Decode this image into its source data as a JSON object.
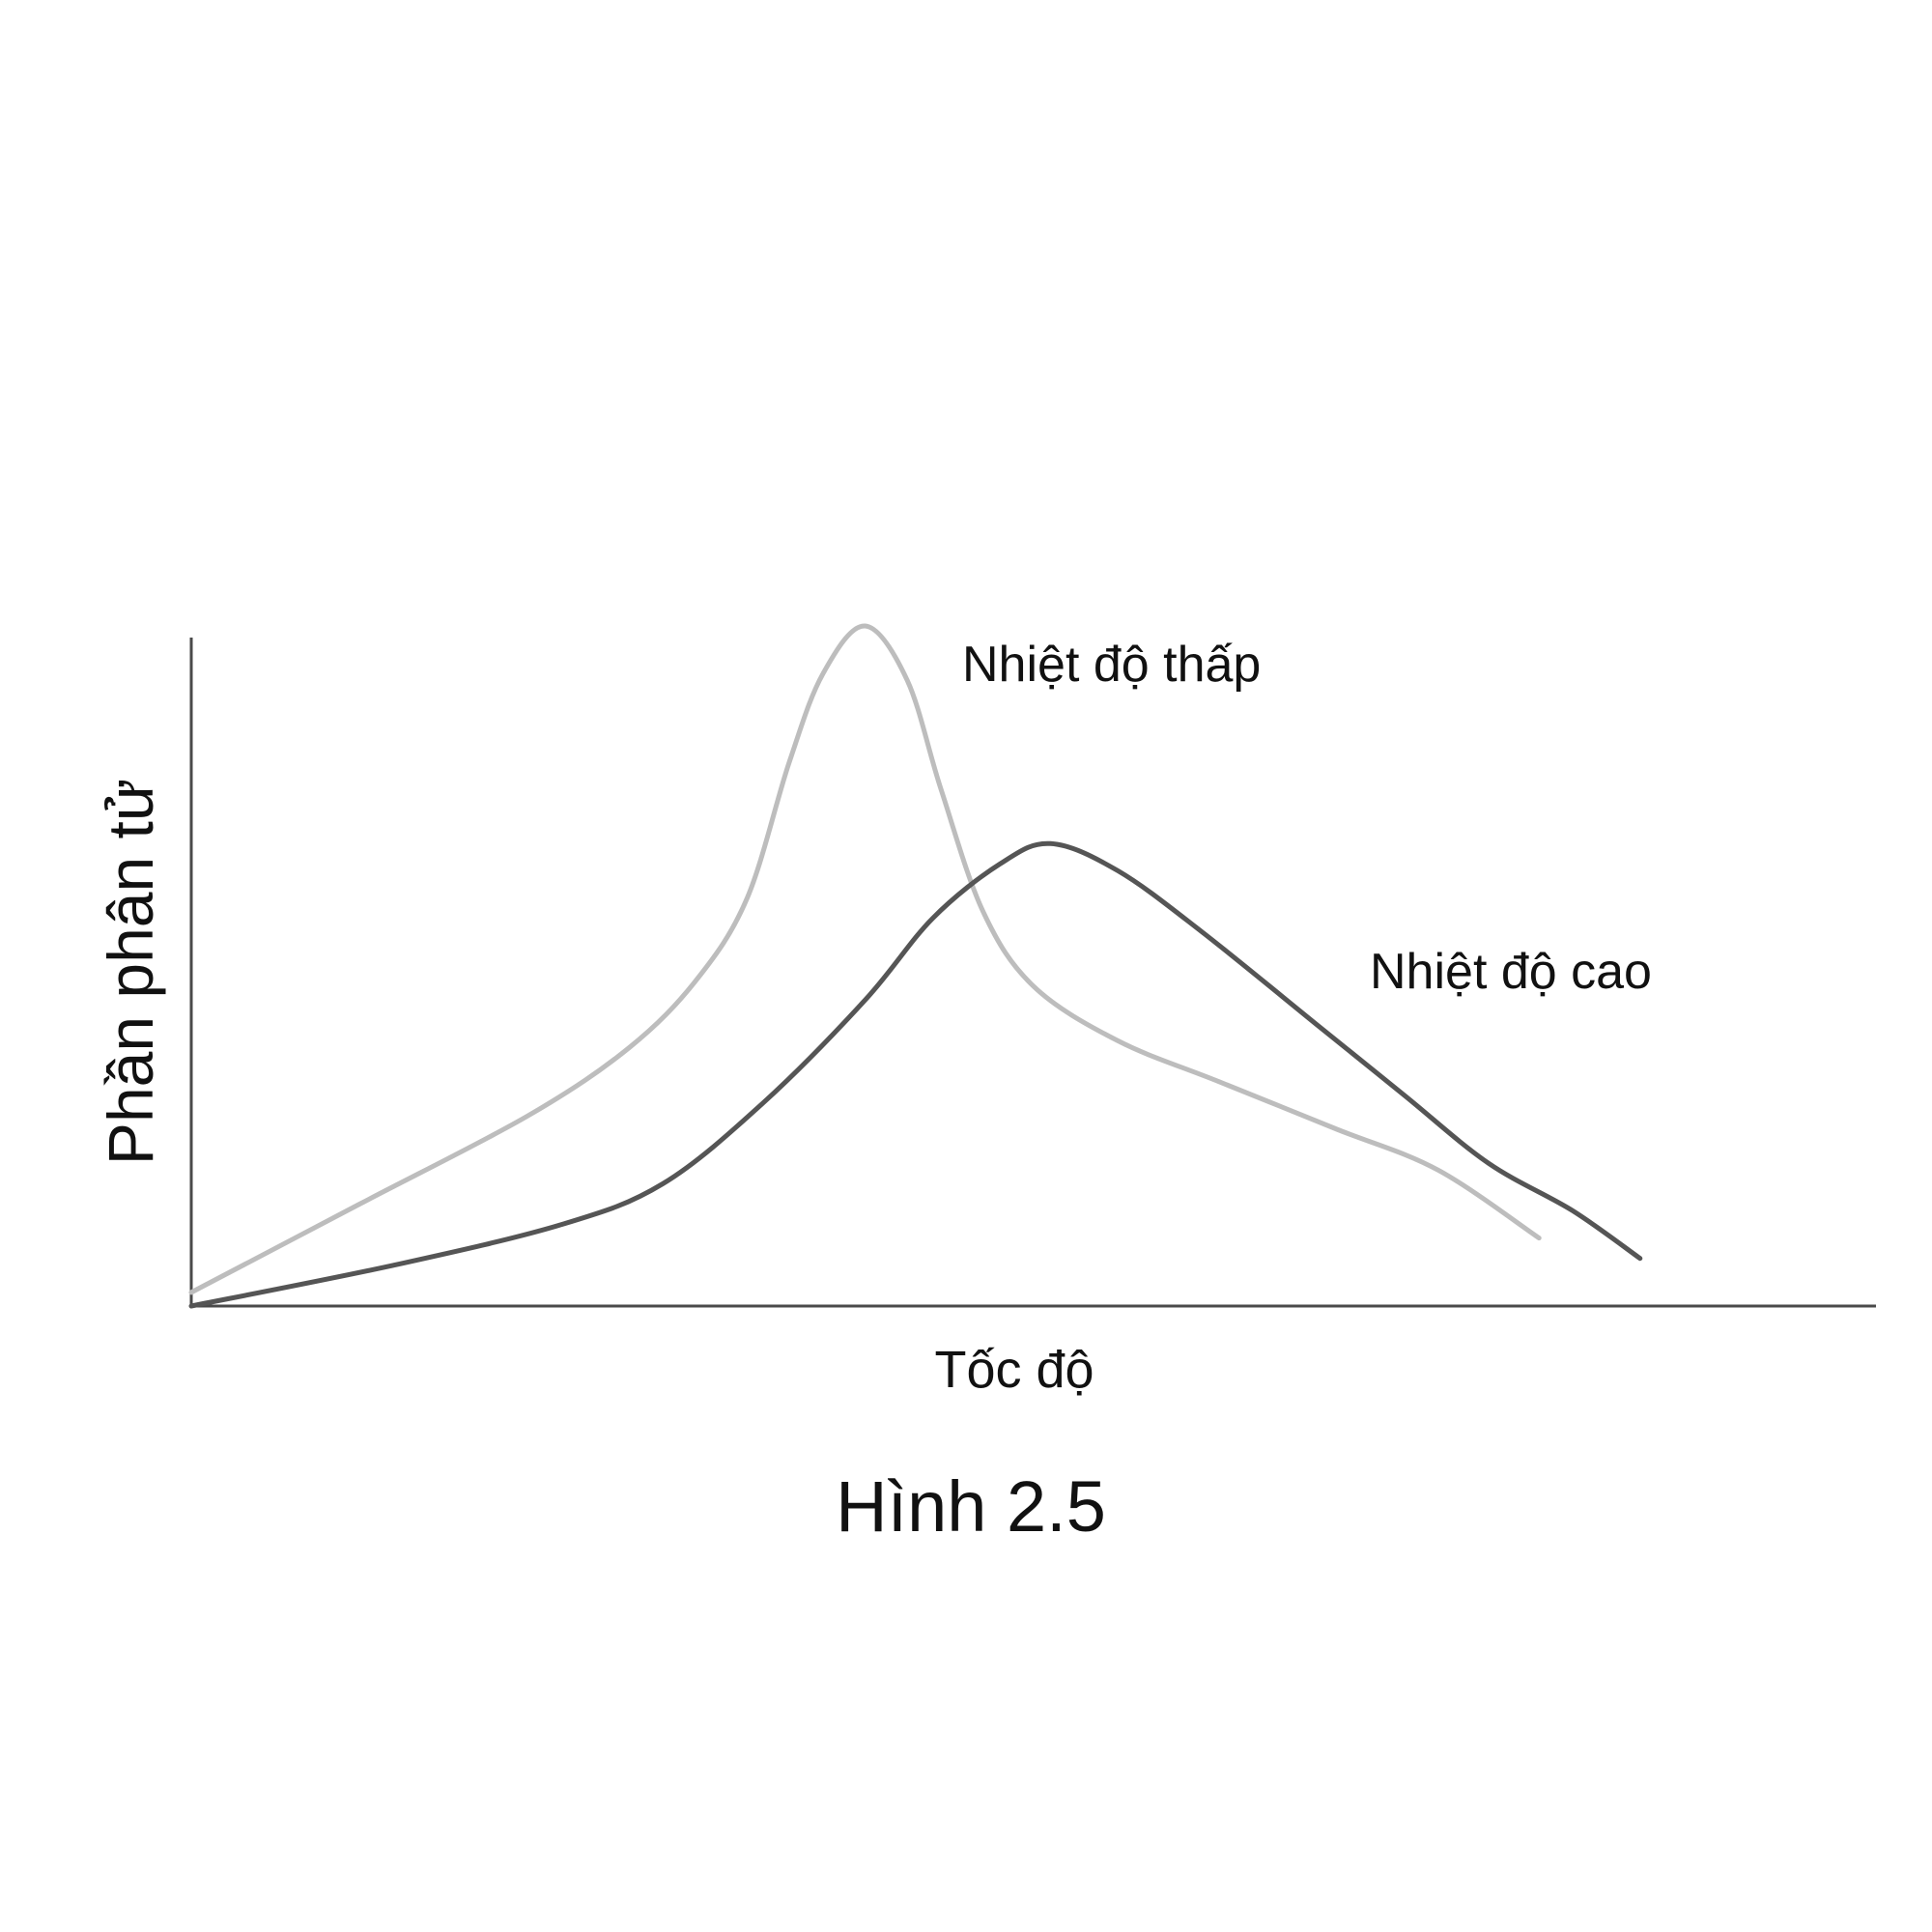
{
  "chart_data": {
    "type": "line",
    "title": "",
    "xlabel": "Tốc độ",
    "ylabel": "Phần phân tử",
    "caption": "Hình 2.5",
    "axes": {
      "x_ticks": false,
      "y_ticks": false,
      "grid": false,
      "xlim": [
        0,
        100
      ],
      "ylim": [
        0,
        100
      ]
    },
    "series": [
      {
        "name": "Nhiệt độ thấp",
        "color": "#bdbdbd",
        "points": [
          [
            0,
            2
          ],
          [
            10,
            15
          ],
          [
            20,
            28
          ],
          [
            26,
            38
          ],
          [
            30,
            48
          ],
          [
            33,
            60
          ],
          [
            35.5,
            80
          ],
          [
            37.5,
            93
          ],
          [
            40,
            100
          ],
          [
            42.5,
            92
          ],
          [
            44.5,
            76
          ],
          [
            47,
            58
          ],
          [
            50,
            47
          ],
          [
            55,
            39
          ],
          [
            61,
            33
          ],
          [
            68,
            26
          ],
          [
            74,
            20
          ],
          [
            80,
            10
          ]
        ]
      },
      {
        "name": "Nhiệt độ cao",
        "color": "#555555",
        "points": [
          [
            0,
            0
          ],
          [
            12,
            6
          ],
          [
            22,
            12
          ],
          [
            28,
            18
          ],
          [
            34,
            30
          ],
          [
            40,
            45
          ],
          [
            44,
            57
          ],
          [
            48,
            65
          ],
          [
            51,
            68
          ],
          [
            55,
            64
          ],
          [
            60,
            55
          ],
          [
            67,
            41
          ],
          [
            72,
            31
          ],
          [
            77,
            21
          ],
          [
            82,
            14
          ],
          [
            86,
            7
          ]
        ]
      }
    ],
    "annotations": [
      "Nhiệt độ thấp",
      "Nhiệt độ cao"
    ]
  }
}
